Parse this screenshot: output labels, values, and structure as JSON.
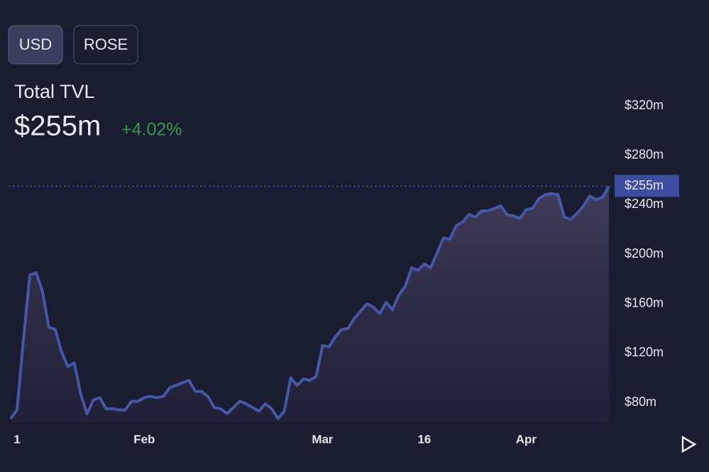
{
  "controls": {
    "buttons": [
      "USD",
      "ROSE"
    ]
  },
  "chart_data": {
    "type": "line",
    "title": "Total TVL",
    "current": {
      "value": 255,
      "label": "$255m"
    },
    "change": {
      "value": 4.02,
      "label": "+4.02%"
    },
    "color": "#4657aa",
    "change_color": "#2f9b47",
    "categories": [
      null,
      "1",
      null,
      null,
      null,
      null,
      null,
      null,
      null,
      null,
      null,
      null,
      null,
      null,
      null,
      null,
      null,
      null,
      null,
      null,
      null,
      "Feb",
      null,
      null,
      null,
      null,
      null,
      null,
      null,
      null,
      null,
      null,
      null,
      null,
      null,
      null,
      null,
      null,
      null,
      null,
      null,
      null,
      null,
      null,
      null,
      null,
      null,
      null,
      null,
      "Mar",
      null,
      null,
      null,
      null,
      null,
      null,
      null,
      null,
      null,
      null,
      null,
      null,
      null,
      null,
      null,
      "16",
      null,
      null,
      null,
      null,
      null,
      null,
      null,
      null,
      null,
      null,
      null,
      null,
      null,
      null,
      null,
      "Apr",
      null,
      null,
      null,
      null,
      null,
      null,
      null,
      null,
      null,
      null,
      null,
      null,
      null
    ],
    "values": [
      67,
      74,
      130,
      183,
      185,
      170,
      141,
      139,
      121,
      109,
      112,
      87,
      71,
      82,
      84,
      75,
      75,
      74,
      74,
      81,
      81,
      84,
      85,
      84,
      85,
      92,
      94,
      96,
      98,
      89,
      89,
      85,
      76,
      75,
      71,
      76,
      81,
      79,
      76,
      73,
      79,
      75,
      67,
      73,
      100,
      94,
      99,
      98,
      101,
      126,
      125,
      133,
      139,
      140,
      148,
      154,
      160,
      157,
      152,
      161,
      155,
      167,
      174,
      189,
      187,
      192,
      189,
      201,
      213,
      212,
      223,
      226,
      232,
      230,
      235,
      235,
      237,
      239,
      232,
      231,
      229,
      236,
      237,
      245,
      248,
      249,
      248,
      230,
      228,
      233,
      239,
      247,
      244,
      246,
      255
    ],
    "ylim": [
      64,
      320
    ],
    "yticks": [
      {
        "value": 80,
        "label": "$80m"
      },
      {
        "value": 120,
        "label": "$120m"
      },
      {
        "value": 160,
        "label": "$160m"
      },
      {
        "value": 200,
        "label": "$200m"
      },
      {
        "value": 240,
        "label": "$240m"
      },
      {
        "value": 280,
        "label": "$280m"
      },
      {
        "value": 320,
        "label": "$320m"
      }
    ],
    "grid": false
  }
}
